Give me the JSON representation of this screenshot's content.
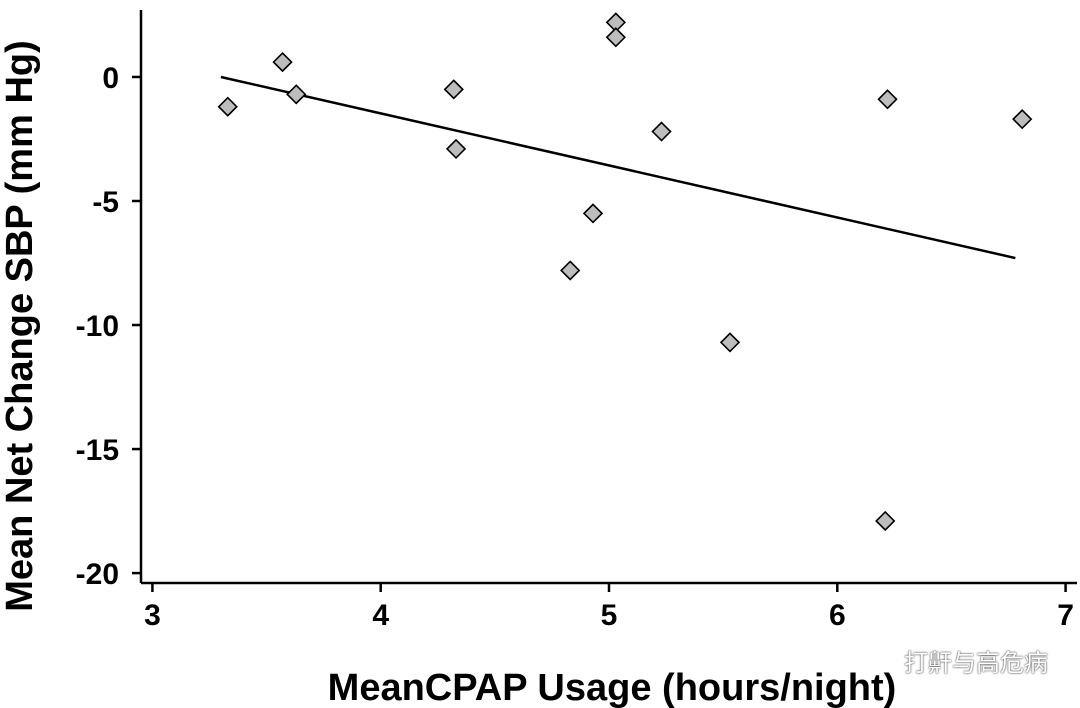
{
  "chart_data": {
    "type": "scatter",
    "title": "",
    "xlabel": "MeanCPAP Usage (hours/night)",
    "ylabel": "Mean Net Change SBP (mm Hg)",
    "xlim": [
      2.95,
      7.05
    ],
    "ylim": [
      -20.4,
      2.7
    ],
    "xticks": [
      3,
      4,
      5,
      6,
      7
    ],
    "yticks": [
      0,
      -5,
      -10,
      -15,
      -20
    ],
    "grid": false,
    "points": [
      {
        "x": 3.33,
        "y": -1.2
      },
      {
        "x": 3.57,
        "y": 0.6
      },
      {
        "x": 3.63,
        "y": -0.7
      },
      {
        "x": 4.32,
        "y": -0.5
      },
      {
        "x": 4.33,
        "y": -2.9
      },
      {
        "x": 4.83,
        "y": -7.8
      },
      {
        "x": 4.93,
        "y": -5.5
      },
      {
        "x": 5.03,
        "y": 2.2
      },
      {
        "x": 5.03,
        "y": 1.6
      },
      {
        "x": 5.23,
        "y": -2.2
      },
      {
        "x": 5.53,
        "y": -10.7
      },
      {
        "x": 6.22,
        "y": -0.9
      },
      {
        "x": 6.21,
        "y": -17.9
      },
      {
        "x": 6.81,
        "y": -1.7
      }
    ],
    "marker": {
      "shape": "diamond",
      "fill": "#bdbdbd",
      "stroke": "#000000"
    },
    "trendline": {
      "x": [
        3.3,
        6.78
      ],
      "y": [
        0.0,
        -7.3
      ],
      "color": "#000000"
    }
  },
  "watermark": {
    "text": "打鼾与高危病",
    "icon": "wechat-icon"
  }
}
